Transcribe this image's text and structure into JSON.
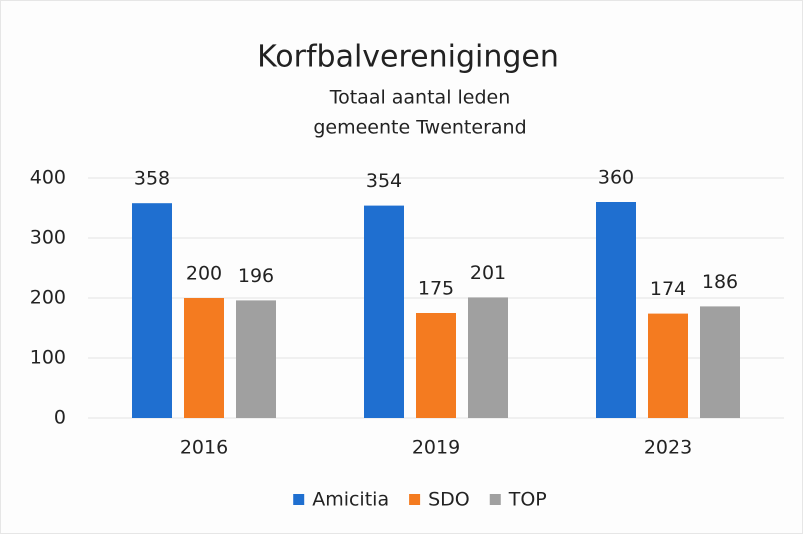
{
  "chart_data": {
    "type": "bar",
    "title": "Korfbalverenigingen",
    "subtitle": [
      "Totaal aantal leden",
      "gemeente Twenterand"
    ],
    "categories": [
      "2016",
      "2019",
      "2023"
    ],
    "series": [
      {
        "name": "Amicitia",
        "color": "#1f6fd0",
        "values": [
          358,
          354,
          360
        ]
      },
      {
        "name": "SDO",
        "color": "#f47b20",
        "values": [
          200,
          175,
          174
        ]
      },
      {
        "name": "TOP",
        "color": "#a0a0a0",
        "values": [
          196,
          201,
          186
        ]
      }
    ],
    "ylim": [
      0,
      400
    ],
    "yticks": [
      0,
      100,
      200,
      300,
      400
    ],
    "grid": true,
    "legend": "bottom"
  }
}
